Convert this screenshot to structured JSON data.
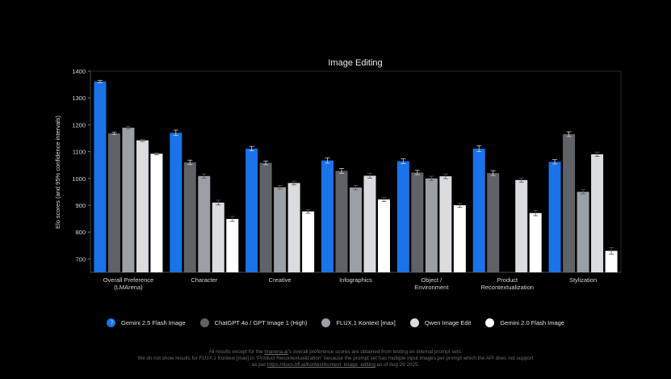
{
  "chart_data": {
    "type": "bar",
    "title": "Image Editing",
    "ylabel": "Elo scores (and 95% confidence intervals)",
    "xlabel": "",
    "ylim": [
      650,
      1400
    ],
    "yticks": [
      700,
      800,
      900,
      1000,
      1100,
      1200,
      1300,
      1400
    ],
    "grid": false,
    "legend_position": "bottom",
    "categories": [
      [
        "Overall Preference",
        "(LMArena)"
      ],
      [
        "Character"
      ],
      [
        "Creative"
      ],
      [
        "Infographics"
      ],
      [
        "Object /",
        "Environment"
      ],
      [
        "Product",
        "Recontextualization"
      ],
      [
        "Stylization"
      ]
    ],
    "series": [
      {
        "name": "Gemini 2.5 Flash Image",
        "color": "#1a73e8",
        "icon": "banana-icon",
        "values": [
          1361,
          1170,
          1111,
          1067,
          1064,
          1111,
          1062
        ],
        "errors": [
          4,
          10,
          8,
          10,
          9,
          11,
          8
        ]
      },
      {
        "name": "ChatGPT 4o / GPT Image 1 (High)",
        "color": "#5f6368",
        "values": [
          1168,
          1060,
          1058,
          1028,
          1022,
          1020,
          1165
        ],
        "errors": [
          4,
          8,
          7,
          9,
          8,
          9,
          9
        ]
      },
      {
        "name": "FLUX.1 Kontext [max]",
        "color": "#9aa0a6",
        "values": [
          1189,
          1009,
          967,
          966,
          1000,
          null,
          950
        ],
        "errors": [
          4,
          8,
          7,
          8,
          8,
          null,
          8
        ]
      },
      {
        "name": "Qwen Image Edit",
        "color": "#dadce0",
        "values": [
          1142,
          910,
          983,
          1010,
          1008,
          994,
          1090
        ],
        "errors": [
          4,
          9,
          7,
          9,
          9,
          8,
          8
        ]
      },
      {
        "name": "Gemini 2.0 Flash Image",
        "color": "#ffffff",
        "values": [
          1092,
          849,
          877,
          922,
          900,
          871,
          730
        ],
        "errors": [
          4,
          9,
          7,
          8,
          8,
          10,
          12
        ]
      }
    ]
  },
  "legend": {
    "items": [
      {
        "label": "Gemini 2.5 Flash Image",
        "color": "#1a73e8",
        "icon": "banana-icon"
      },
      {
        "label": "ChatGPT 4o / GPT Image 1 (High)",
        "color": "#5f6368"
      },
      {
        "label": "FLUX.1 Kontext [max]",
        "color": "#9aa0a6"
      },
      {
        "label": "Qwen Image Edit",
        "color": "#dadce0"
      },
      {
        "label": "Gemini 2.0 Flash Image",
        "color": "#ffffff"
      }
    ]
  },
  "footnote": {
    "line1_pre": "All results except for the ",
    "line1_link": "lmarena.ai",
    "line1_post": "'s overall preference scores are obtained from testing on internal prompt sets.",
    "line2": "We do not show results for FLUX.1 Kontext [max] in \"Product Recontextualization\" because the prompt set has multiple input images per prompt which the API does not support",
    "line3_pre": "as per ",
    "line3_link": "https://docs.bfl.ai/kontext/kontext_image_editing",
    "line3_post": " as of Aug 26 2025."
  },
  "colors": {
    "background": "#000000",
    "axis": "#444444",
    "text": "#e0e0e0",
    "muted": "#6e6e6e"
  }
}
